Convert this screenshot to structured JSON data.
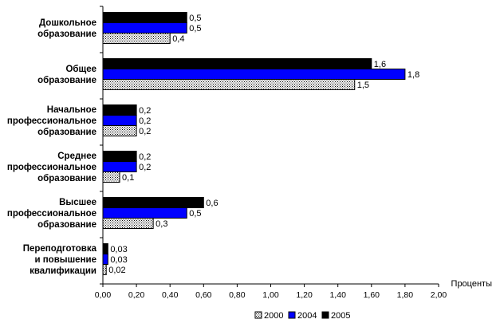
{
  "chart_data": {
    "type": "bar",
    "orientation": "horizontal",
    "title": "",
    "xlabel": "Проценты",
    "ylabel": "",
    "xlim": [
      0,
      2
    ],
    "x_ticks": [
      "0,00",
      "0,20",
      "0,40",
      "0,60",
      "0,80",
      "1,00",
      "1,20",
      "1,40",
      "1,60",
      "1,80",
      "2,00"
    ],
    "categories": [
      [
        "Дошкольное",
        "образование"
      ],
      [
        "Общее",
        "образование"
      ],
      [
        "Начальное",
        "профессиональное",
        "образование"
      ],
      [
        "Среднее",
        "профессиональное",
        "образование"
      ],
      [
        "Высшее",
        "профессиональное",
        "образование"
      ],
      [
        "Переподготовка",
        "и повышение",
        "квалификации"
      ]
    ],
    "series": [
      {
        "name": "2005",
        "color": "#000000",
        "pattern": "solid",
        "values": [
          0.5,
          1.6,
          0.2,
          0.2,
          0.6,
          0.03
        ],
        "labels": [
          "0,5",
          "1,6",
          "0,2",
          "0,2",
          "0,6",
          "0,03"
        ]
      },
      {
        "name": "2004",
        "color": "#0000ff",
        "pattern": "solid",
        "values": [
          0.5,
          1.8,
          0.2,
          0.2,
          0.5,
          0.03
        ],
        "labels": [
          "0,5",
          "1,8",
          "0,2",
          "0,2",
          "0,5",
          "0,03"
        ]
      },
      {
        "name": "2000",
        "color": "#ffffff",
        "pattern": "dots",
        "values": [
          0.4,
          1.5,
          0.2,
          0.1,
          0.3,
          0.02
        ],
        "labels": [
          "0,4",
          "1,5",
          "0,2",
          "0,1",
          "0,3",
          "0,02"
        ]
      }
    ],
    "legend": {
      "placement": "bottom-right",
      "entries": [
        {
          "name": "2000",
          "pattern": "dots",
          "color": "#ffffff"
        },
        {
          "name": "2004",
          "pattern": "solid",
          "color": "#0000ff"
        },
        {
          "name": "2005",
          "pattern": "solid",
          "color": "#000000"
        }
      ]
    },
    "grid": false
  }
}
